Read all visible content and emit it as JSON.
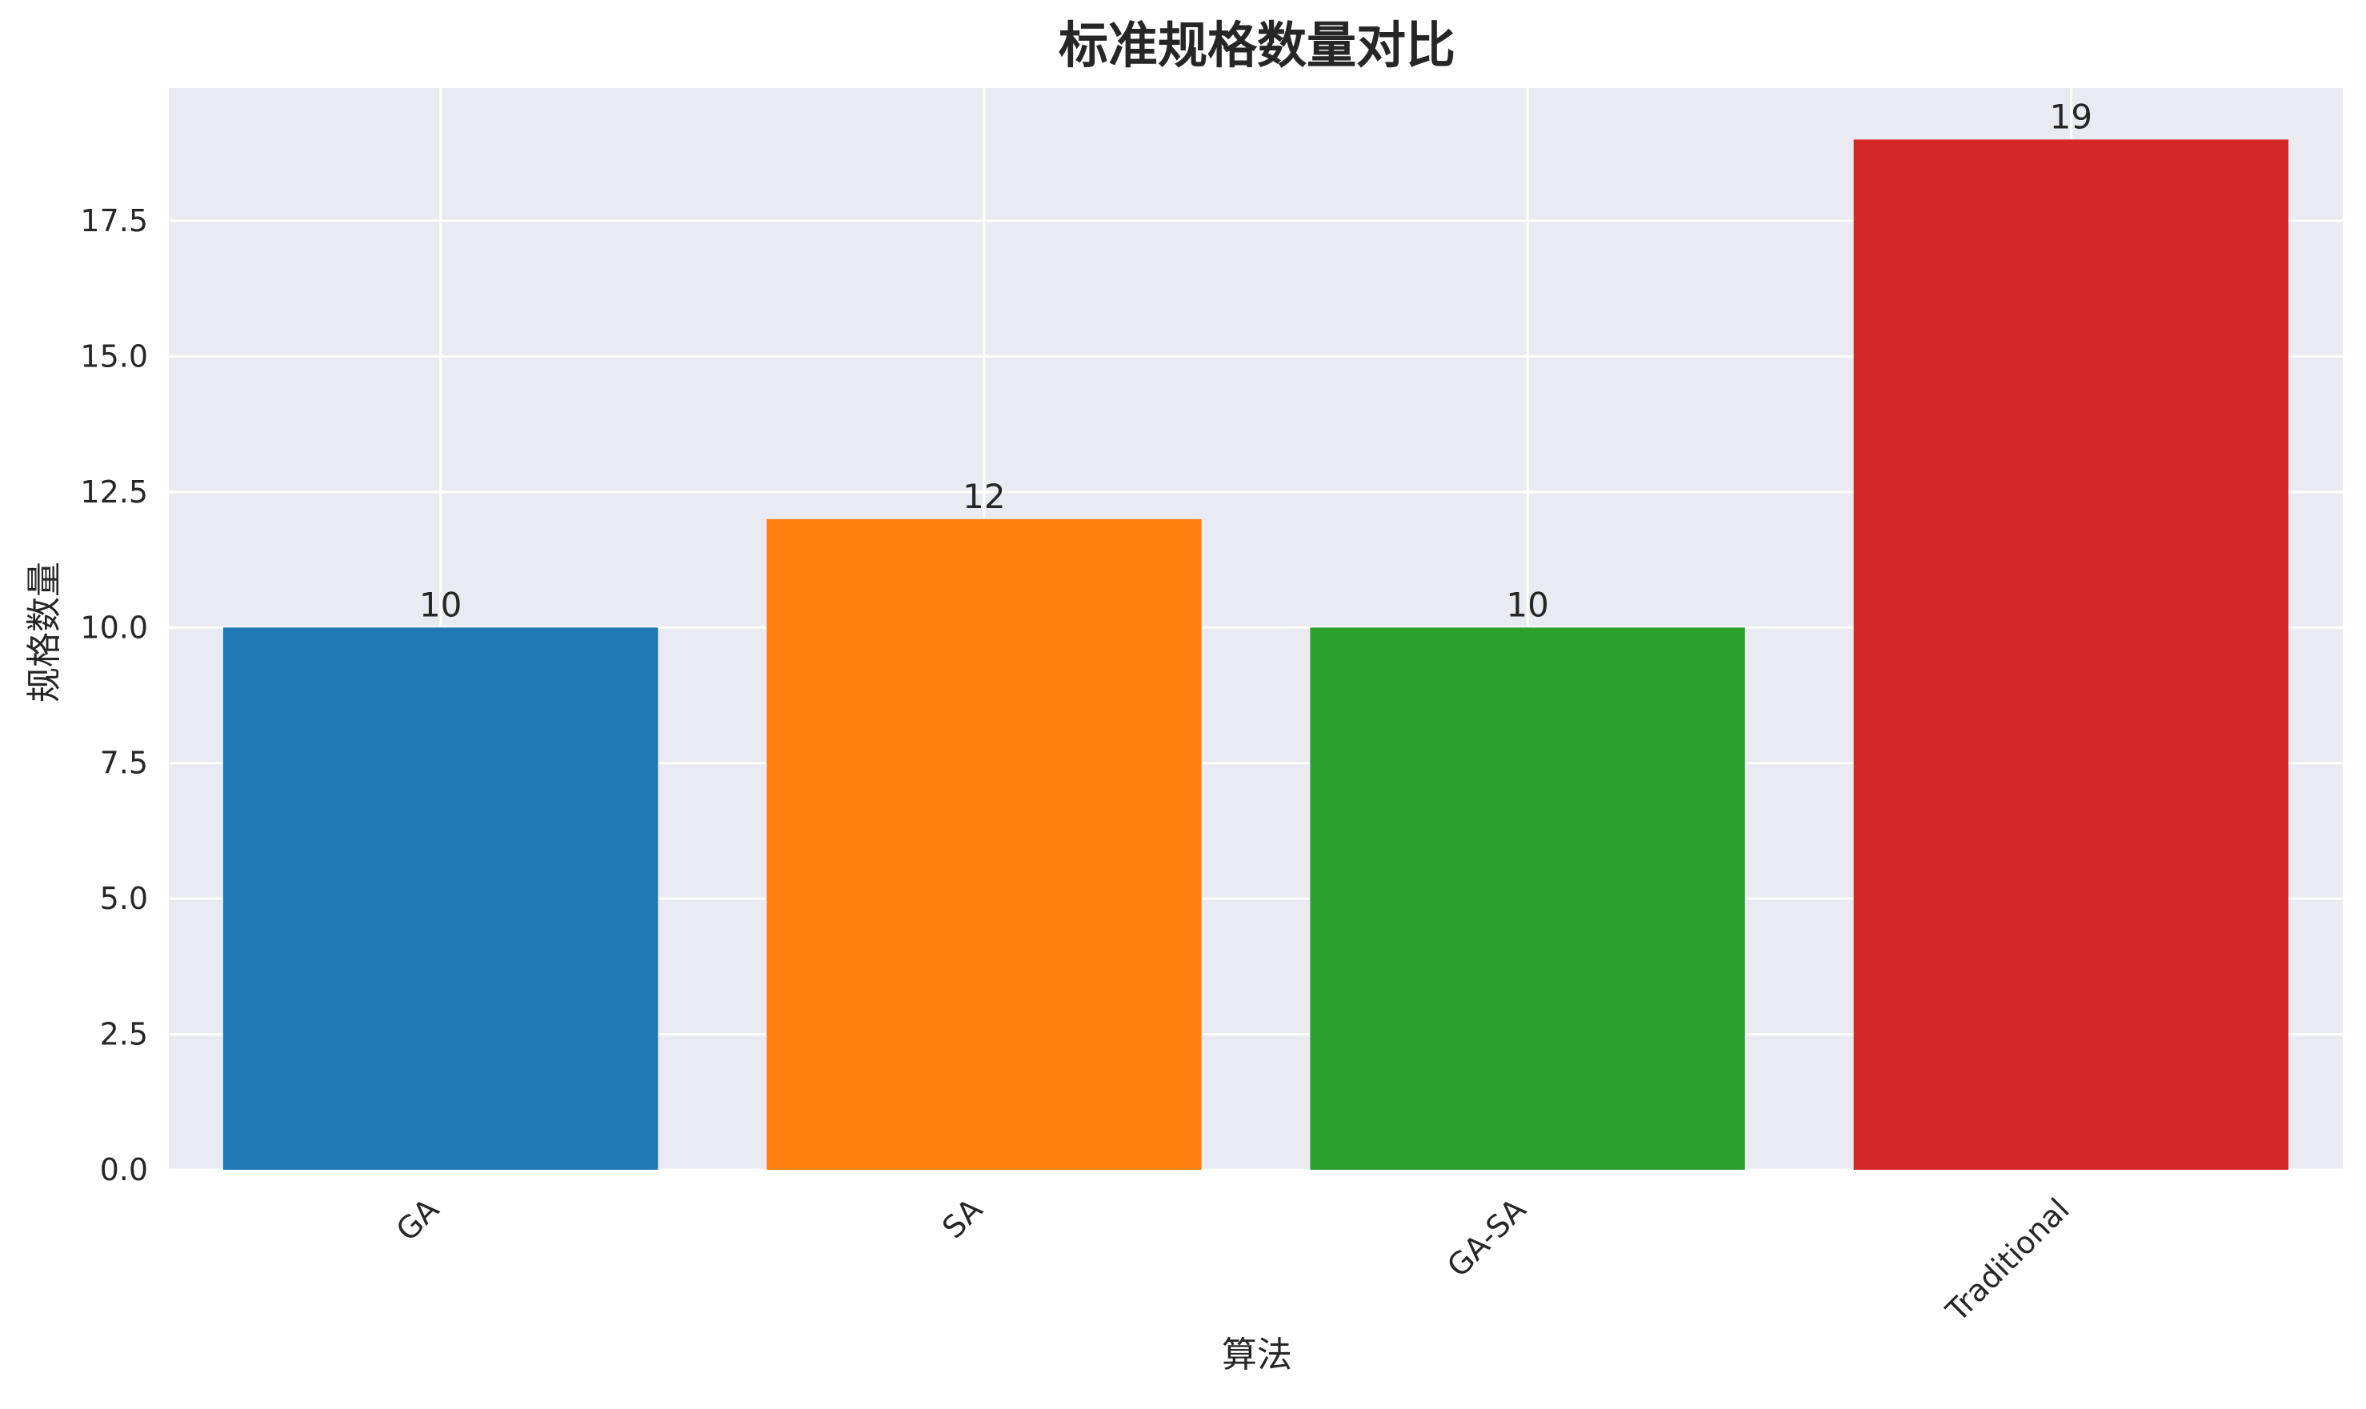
{
  "chart_data": {
    "type": "bar",
    "title": "标准规格数量对比",
    "xlabel": "算法",
    "ylabel": "规格数量",
    "categories": [
      "GA",
      "SA",
      "GA-SA",
      "Traditional"
    ],
    "values": [
      10,
      12,
      10,
      19
    ],
    "data_labels": [
      "10",
      "12",
      "10",
      "19"
    ],
    "colors": [
      "#1f77b4",
      "#ff7f0e",
      "#2ca02c",
      "#d62728"
    ],
    "ylim": [
      0,
      19.95
    ],
    "yticks": [
      0,
      2.5,
      5,
      7.5,
      10,
      12.5,
      15,
      17.5
    ],
    "ytick_labels": [
      "0.0",
      "2.5",
      "5.0",
      "7.5",
      "10.0",
      "12.5",
      "15.0",
      "17.5"
    ],
    "grid": true,
    "plot_background": "#eaeaf2",
    "legend": "none"
  }
}
